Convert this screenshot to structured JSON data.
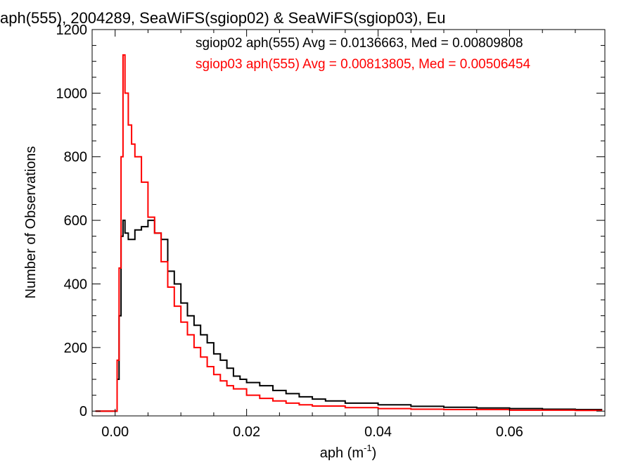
{
  "chart_data": {
    "type": "line",
    "title": "aph(555), 2004289, SeaWiFS(sgiop02) & SeaWiFS(sgiop03), Eu",
    "xlabel": "aph (m",
    "xlabel_sup": "-1",
    "xlabel_end": ")",
    "ylabel": "Number of Observations",
    "xlim": [
      -0.0035,
      0.0745
    ],
    "ylim": [
      -15,
      1200
    ],
    "x_ticks": [
      0.0,
      0.02,
      0.04,
      0.06
    ],
    "x_tick_labels": [
      "0.00",
      "0.02",
      "0.04",
      "0.06"
    ],
    "y_ticks": [
      0,
      200,
      400,
      600,
      800,
      1000,
      1200
    ],
    "y_tick_labels": [
      "0",
      "200",
      "400",
      "600",
      "800",
      "1000",
      "1200"
    ],
    "grid": false,
    "legend_position": "top-right",
    "series": [
      {
        "name": "sgiop02",
        "legend": "sgiop02 aph(555) Avg = 0.0136663, Med = 0.00809808",
        "color": "#000000",
        "x": [
          -0.003,
          0.0,
          0.0003,
          0.0006,
          0.0009,
          0.0012,
          0.0015,
          0.002,
          0.003,
          0.004,
          0.005,
          0.006,
          0.007,
          0.008,
          0.009,
          0.01,
          0.011,
          0.012,
          0.013,
          0.014,
          0.015,
          0.016,
          0.017,
          0.018,
          0.019,
          0.02,
          0.022,
          0.024,
          0.026,
          0.028,
          0.03,
          0.032,
          0.035,
          0.04,
          0.045,
          0.05,
          0.055,
          0.06,
          0.065,
          0.07,
          0.074
        ],
        "y": [
          0,
          0,
          100,
          300,
          550,
          600,
          560,
          540,
          570,
          580,
          600,
          560,
          540,
          440,
          400,
          340,
          300,
          270,
          240,
          215,
          180,
          160,
          135,
          110,
          100,
          90,
          80,
          65,
          55,
          45,
          38,
          32,
          25,
          20,
          15,
          12,
          10,
          8,
          6,
          5,
          4
        ]
      },
      {
        "name": "sgiop03",
        "legend": "sgiop03 aph(555) Avg = 0.00813805, Med = 0.00506454",
        "color": "#ff0000",
        "x": [
          -0.003,
          0.0,
          0.0003,
          0.0006,
          0.0009,
          0.0012,
          0.0015,
          0.002,
          0.0025,
          0.003,
          0.004,
          0.005,
          0.006,
          0.007,
          0.008,
          0.009,
          0.01,
          0.011,
          0.012,
          0.013,
          0.014,
          0.015,
          0.016,
          0.017,
          0.018,
          0.02,
          0.022,
          0.024,
          0.026,
          0.028,
          0.03,
          0.035,
          0.04,
          0.045,
          0.05,
          0.06,
          0.07,
          0.074
        ],
        "y": [
          0,
          0,
          160,
          450,
          800,
          1120,
          1000,
          900,
          840,
          800,
          720,
          610,
          560,
          470,
          390,
          330,
          280,
          240,
          200,
          170,
          140,
          115,
          95,
          80,
          70,
          50,
          40,
          32,
          25,
          20,
          16,
          11,
          8,
          6,
          5,
          3,
          2,
          1
        ]
      }
    ]
  }
}
